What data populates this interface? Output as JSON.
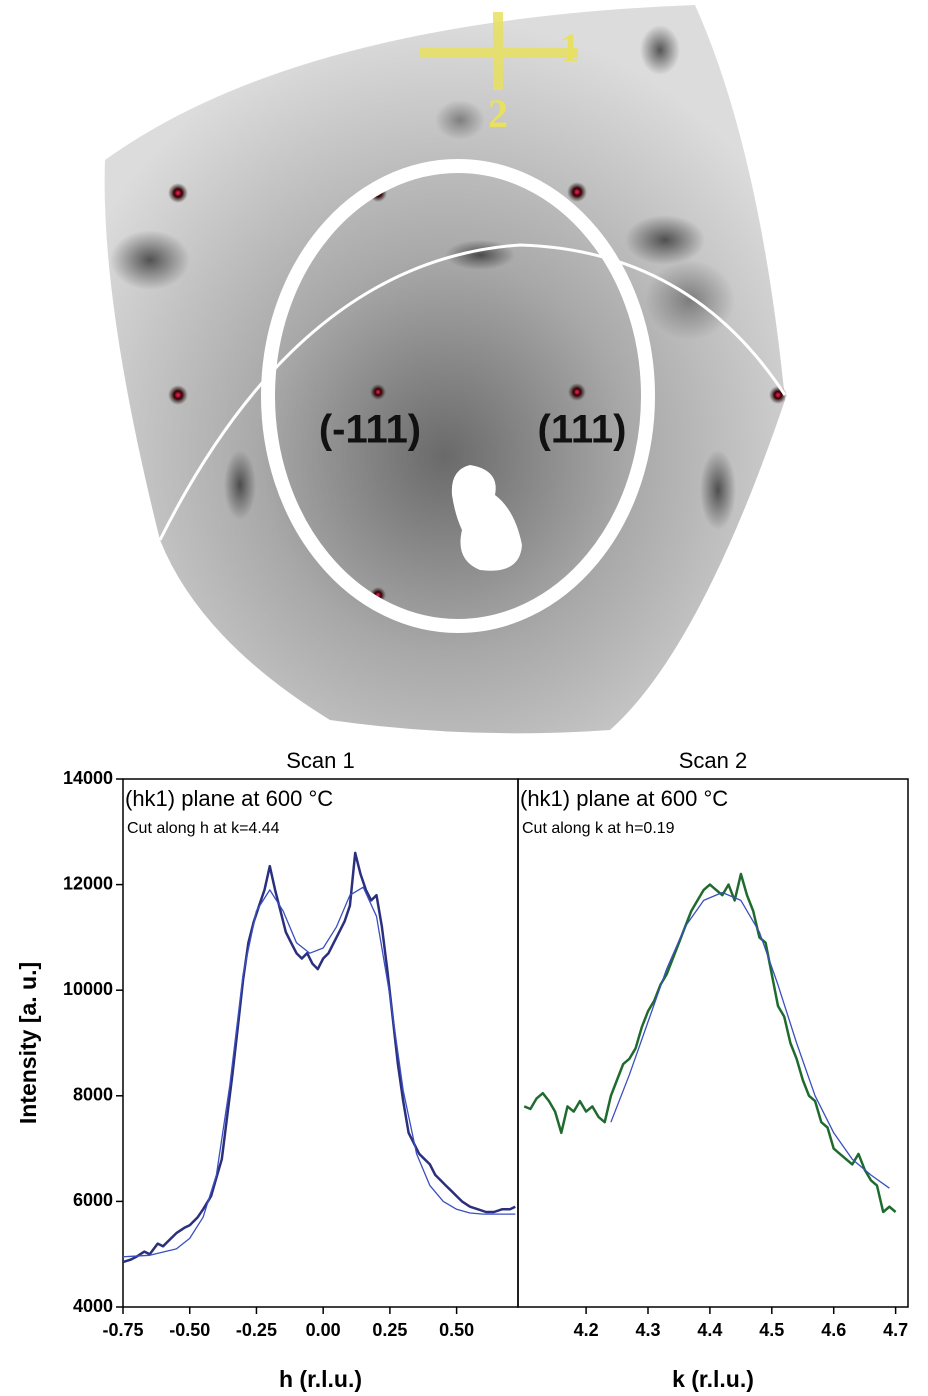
{
  "image": {
    "peaks": [
      "(-111)",
      "(111)"
    ],
    "scans": [
      "1",
      "2"
    ]
  },
  "chart_data": [
    {
      "type": "line",
      "title": "Scan 1",
      "subtitle": "(hk1) plane at 600 °C",
      "annotation": "Cut along h at k=4.44",
      "x_label": "h (r.l.u.)",
      "y_label": "Intensity [a. u.]",
      "xlim": [
        -0.75,
        0.73
      ],
      "ylim": [
        4000,
        14000
      ],
      "xticks": [
        -0.75,
        {
          "value": -0.5,
          "label": "-0.50"
        },
        -0.25,
        {
          "value": 0,
          "label": "0.00"
        },
        0.25,
        {
          "value": 0.5,
          "label": "0.50"
        }
      ],
      "yticks": [
        4000,
        6000,
        8000,
        10000,
        12000,
        14000
      ],
      "series": [
        {
          "color": "#2b2f7e",
          "width": 2.5,
          "x": [
            -0.75,
            -0.72,
            -0.7,
            -0.67,
            -0.65,
            -0.62,
            -0.6,
            -0.57,
            -0.55,
            -0.52,
            -0.5,
            -0.47,
            -0.45,
            -0.42,
            -0.4,
            -0.38,
            -0.36,
            -0.34,
            -0.32,
            -0.3,
            -0.28,
            -0.26,
            -0.24,
            -0.22,
            -0.2,
            -0.18,
            -0.16,
            -0.14,
            -0.12,
            -0.1,
            -0.08,
            -0.06,
            -0.04,
            -0.02,
            0,
            0.02,
            0.04,
            0.06,
            0.08,
            0.1,
            0.12,
            0.14,
            0.16,
            0.18,
            0.2,
            0.22,
            0.24,
            0.26,
            0.28,
            0.3,
            0.32,
            0.34,
            0.36,
            0.38,
            0.4,
            0.42,
            0.44,
            0.46,
            0.48,
            0.5,
            0.52,
            0.55,
            0.58,
            0.61,
            0.64,
            0.67,
            0.7,
            0.72
          ],
          "values": [
            4850,
            4900,
            4950,
            5050,
            5000,
            5200,
            5150,
            5300,
            5400,
            5500,
            5550,
            5700,
            5850,
            6100,
            6450,
            6800,
            7600,
            8400,
            9300,
            10200,
            10900,
            11300,
            11600,
            11900,
            12350,
            11900,
            11500,
            11100,
            10900,
            10700,
            10600,
            10700,
            10500,
            10400,
            10600,
            10700,
            10900,
            11100,
            11300,
            11600,
            12600,
            12200,
            11900,
            11700,
            11800,
            11200,
            10400,
            9500,
            8600,
            7900,
            7300,
            7100,
            6900,
            6800,
            6700,
            6500,
            6400,
            6300,
            6200,
            6100,
            6000,
            5900,
            5850,
            5800,
            5800,
            5850,
            5850,
            5900
          ]
        },
        {
          "color": "#3a4fc0",
          "width": 1.3,
          "x": [
            -0.75,
            -0.65,
            -0.55,
            -0.5,
            -0.45,
            -0.4,
            -0.35,
            -0.3,
            -0.25,
            -0.2,
            -0.15,
            -0.1,
            -0.05,
            0,
            0.05,
            0.1,
            0.15,
            0.2,
            0.25,
            0.3,
            0.35,
            0.4,
            0.45,
            0.5,
            0.55,
            0.6,
            0.65,
            0.72
          ],
          "values": [
            4950,
            4980,
            5100,
            5300,
            5700,
            6500,
            8200,
            10300,
            11500,
            11900,
            11500,
            10900,
            10700,
            10800,
            11200,
            11800,
            11950,
            11400,
            9900,
            8100,
            6900,
            6300,
            6000,
            5850,
            5780,
            5760,
            5760,
            5760
          ]
        }
      ]
    },
    {
      "type": "line",
      "title": "Scan 2",
      "subtitle": "(hk1) plane at 600 °C",
      "annotation": "Cut along k at h=0.19",
      "x_label": "k (r.l.u.)",
      "xlim": [
        4.09,
        4.72
      ],
      "ylim": [
        4000,
        14000
      ],
      "xticks": [
        4.2,
        4.3,
        4.4,
        4.5,
        4.6,
        4.7
      ],
      "series": [
        {
          "color": "#1f6b2e",
          "width": 2.5,
          "x": [
            4.1,
            4.11,
            4.12,
            4.13,
            4.14,
            4.15,
            4.16,
            4.17,
            4.18,
            4.19,
            4.2,
            4.21,
            4.22,
            4.23,
            4.24,
            4.25,
            4.26,
            4.27,
            4.28,
            4.29,
            4.3,
            4.31,
            4.32,
            4.33,
            4.34,
            4.35,
            4.36,
            4.37,
            4.38,
            4.39,
            4.4,
            4.41,
            4.42,
            4.43,
            4.44,
            4.45,
            4.46,
            4.47,
            4.48,
            4.49,
            4.5,
            4.51,
            4.52,
            4.53,
            4.54,
            4.55,
            4.56,
            4.57,
            4.58,
            4.59,
            4.6,
            4.61,
            4.62,
            4.63,
            4.64,
            4.65,
            4.66,
            4.67,
            4.68,
            4.69,
            4.7
          ],
          "values": [
            7800,
            7750,
            7950,
            8050,
            7900,
            7700,
            7300,
            7800,
            7700,
            7900,
            7700,
            7800,
            7600,
            7500,
            8000,
            8300,
            8600,
            8700,
            8900,
            9300,
            9600,
            9800,
            10100,
            10300,
            10600,
            10900,
            11200,
            11500,
            11700,
            11900,
            12000,
            11900,
            11800,
            12000,
            11700,
            12200,
            11800,
            11500,
            11000,
            10900,
            10300,
            9700,
            9500,
            9000,
            8700,
            8300,
            8000,
            7900,
            7500,
            7400,
            7000,
            6900,
            6800,
            6700,
            6900,
            6600,
            6400,
            6300,
            5800,
            5900,
            5800
          ]
        },
        {
          "color": "#3a4fc0",
          "width": 1.3,
          "x": [
            4.24,
            4.27,
            4.3,
            4.33,
            4.36,
            4.39,
            4.42,
            4.45,
            4.48,
            4.51,
            4.54,
            4.57,
            4.6,
            4.63,
            4.66,
            4.69
          ],
          "values": [
            7500,
            8400,
            9400,
            10400,
            11200,
            11700,
            11850,
            11700,
            11100,
            10100,
            9000,
            8000,
            7300,
            6800,
            6500,
            6250
          ]
        }
      ]
    }
  ]
}
